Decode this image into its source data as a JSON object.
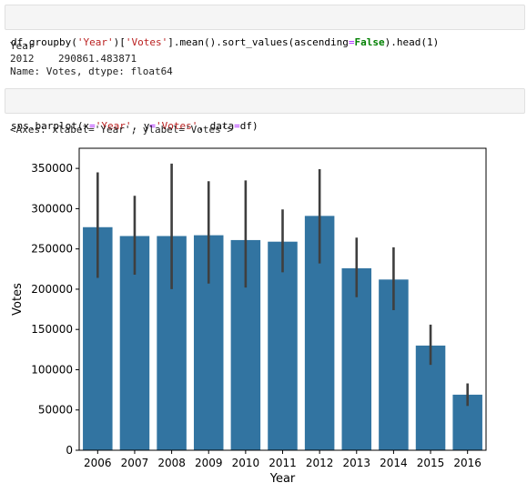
{
  "cells": [
    {
      "code_tokens": [
        {
          "t": "df.groupby(",
          "c": ""
        },
        {
          "t": "'Year'",
          "c": "str"
        },
        {
          "t": ")[",
          "c": ""
        },
        {
          "t": "'Votes'",
          "c": "str"
        },
        {
          "t": "].mean().sort_values(ascending",
          "c": ""
        },
        {
          "t": "=",
          "c": "op"
        },
        {
          "t": "False",
          "c": "kw"
        },
        {
          "t": ").head(1)",
          "c": ""
        }
      ],
      "output_lines": [
        "Year",
        "2012    290861.483871",
        "Name: Votes, dtype: float64"
      ]
    },
    {
      "code_tokens": [
        {
          "t": "sns.barplot(x",
          "c": ""
        },
        {
          "t": "=",
          "c": "op"
        },
        {
          "t": "'Year'",
          "c": "str"
        },
        {
          "t": ", y",
          "c": ""
        },
        {
          "t": "=",
          "c": "op"
        },
        {
          "t": "'Votes'",
          "c": "str"
        },
        {
          "t": ", data",
          "c": ""
        },
        {
          "t": "=",
          "c": "op"
        },
        {
          "t": "df)",
          "c": ""
        }
      ],
      "output_lines": [
        "<Axes: xlabel='Year', ylabel='Votes'>"
      ]
    }
  ],
  "chart_data": {
    "type": "bar",
    "categories": [
      "2006",
      "2007",
      "2008",
      "2009",
      "2010",
      "2011",
      "2012",
      "2013",
      "2014",
      "2015",
      "2016"
    ],
    "values": [
      277000,
      266000,
      266000,
      267000,
      261000,
      259000,
      291000,
      226000,
      212000,
      130000,
      69000
    ],
    "error_low": [
      214000,
      218000,
      200000,
      207000,
      202000,
      221000,
      232000,
      190000,
      174000,
      106000,
      55000
    ],
    "error_high": [
      345000,
      316000,
      356000,
      334000,
      335000,
      299000,
      349000,
      264000,
      252000,
      156000,
      83000
    ],
    "xlabel": "Year",
    "ylabel": "Votes",
    "ylim": [
      0,
      375000
    ],
    "yticks": [
      0,
      50000,
      100000,
      150000,
      200000,
      250000,
      300000,
      350000
    ],
    "ytick_labels": [
      "0",
      "50000",
      "100000",
      "150000",
      "200000",
      "250000",
      "300000",
      "350000"
    ],
    "bar_color": "#3274a1",
    "error_color": "#3f3f3f",
    "grid": false
  }
}
